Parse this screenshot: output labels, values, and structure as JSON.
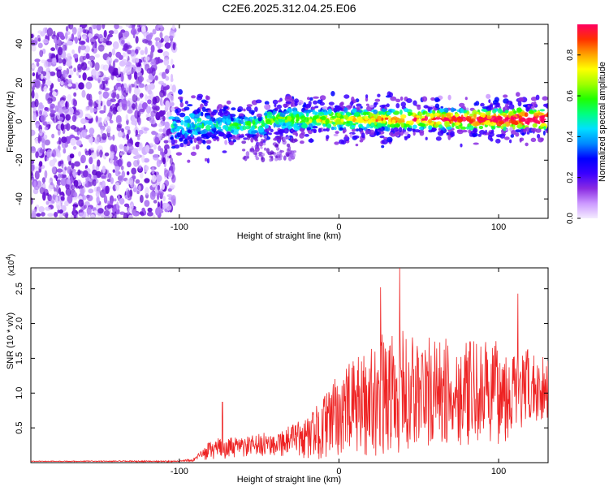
{
  "figure": {
    "title": "C2E6.2025.312.04.25.E06"
  },
  "chart_data": [
    {
      "type": "heatmap",
      "name": "spectrogram",
      "xlabel": "Height of straight line (km)",
      "ylabel": "Frequency (Hz)",
      "xlim": [
        -193,
        131
      ],
      "ylim": [
        -50,
        50
      ],
      "xticks": [
        -100,
        0,
        100
      ],
      "yticks": [
        -40,
        -20,
        0,
        20,
        40
      ],
      "colorbar": {
        "label": "Normalized spectral amplitude",
        "range": [
          0,
          0.95
        ],
        "ticks": [
          0.0,
          0.2,
          0.4,
          0.6,
          0.8
        ],
        "colors": [
          "#f4ecff",
          "#cc99ff",
          "#8a2be2",
          "#3a00ff",
          "#0000ff",
          "#0088ff",
          "#00e0ff",
          "#00ff80",
          "#20ff00",
          "#a0ff00",
          "#ffff00",
          "#ffa000",
          "#ff3000",
          "#ff0060"
        ]
      },
      "band": {
        "x_start": -105,
        "center_hz": 1,
        "center_hz_near_onset": -2,
        "half_width_hz": 5,
        "noise_region_x": [
          -193,
          -103
        ]
      }
    },
    {
      "type": "line",
      "name": "snr",
      "xlabel": "Height of straight line (km)",
      "ylabel": "SNR (10 * v/v)",
      "multiplier_label": "(x10",
      "multiplier_exp": "4",
      "multiplier_close": ")",
      "xlim": [
        -193,
        131
      ],
      "ylim": [
        0,
        2.8
      ],
      "xticks": [
        -100,
        0,
        100
      ],
      "yticks": [
        0.5,
        1.0,
        1.5,
        2.0,
        2.5
      ],
      "color": "#ee2222",
      "envelope": {
        "x": [
          -193,
          -100,
          -90,
          -83,
          -78,
          -60,
          -40,
          -20,
          -10,
          0,
          10,
          20,
          30,
          40,
          60,
          80,
          100,
          131
        ],
        "mean": [
          0.02,
          0.02,
          0.05,
          0.15,
          0.2,
          0.22,
          0.28,
          0.35,
          0.5,
          0.7,
          0.8,
          0.9,
          1.0,
          1.0,
          1.0,
          1.0,
          1.0,
          1.1
        ],
        "spread": [
          0.005,
          0.01,
          0.03,
          0.12,
          0.15,
          0.15,
          0.18,
          0.3,
          0.45,
          0.6,
          0.7,
          0.8,
          0.9,
          0.9,
          0.8,
          0.75,
          0.75,
          0.45
        ]
      },
      "peaks": [
        {
          "x": -73,
          "y": 0.87
        },
        {
          "x": 38,
          "y": 2.8
        },
        {
          "x": 26,
          "y": 2.52
        },
        {
          "x": 112,
          "y": 2.43
        }
      ]
    }
  ]
}
